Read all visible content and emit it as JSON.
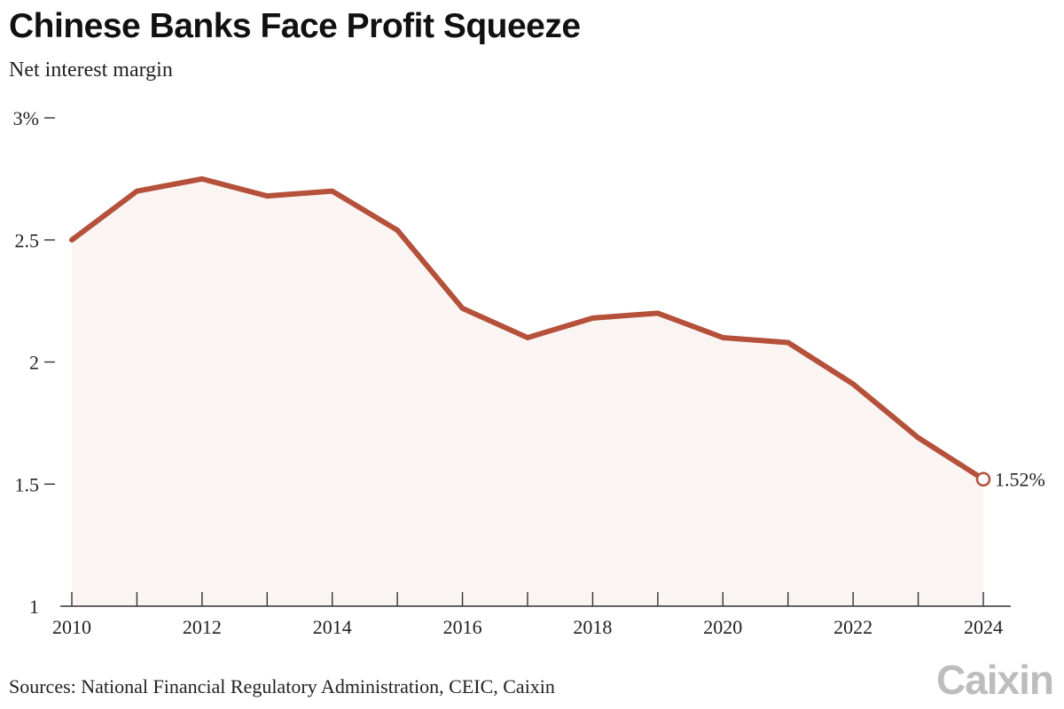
{
  "header": {
    "title": "Chinese Banks Face Profit Squeeze",
    "subtitle": "Net interest margin"
  },
  "footer": {
    "source": "Sources: National Financial Regulatory Administration, CEIC, Caixin",
    "logo": "Caixin"
  },
  "colors": {
    "line": "#b5503a",
    "area": "#faf5f3",
    "axis": "#333333"
  },
  "chart_data": {
    "type": "area",
    "title": "Chinese Banks Face Profit Squeeze",
    "subtitle": "Net interest margin",
    "xlabel": "",
    "ylabel": "",
    "x": [
      2010,
      2011,
      2012,
      2013,
      2014,
      2015,
      2016,
      2017,
      2018,
      2019,
      2020,
      2021,
      2022,
      2023,
      2024
    ],
    "series": [
      {
        "values": [
          2.5,
          2.7,
          2.75,
          2.68,
          2.7,
          2.54,
          2.22,
          2.1,
          2.18,
          2.2,
          2.1,
          2.08,
          1.91,
          1.69,
          1.52
        ]
      }
    ],
    "ylim": [
      1,
      3
    ],
    "xlim": [
      2010,
      2024
    ],
    "y_ticks": [
      1,
      1.5,
      2,
      2.5,
      3
    ],
    "y_tick_labels": [
      "1",
      "1.5",
      "2",
      "2.5",
      "3%"
    ],
    "x_ticks": [
      2010,
      2012,
      2014,
      2016,
      2018,
      2020,
      2022,
      2024
    ],
    "x_tick_labels": [
      "2010",
      "2012",
      "2014",
      "2016",
      "2018",
      "2020",
      "2022",
      "2024"
    ],
    "end_label": "1.52%",
    "grid": false,
    "legend": "none"
  }
}
